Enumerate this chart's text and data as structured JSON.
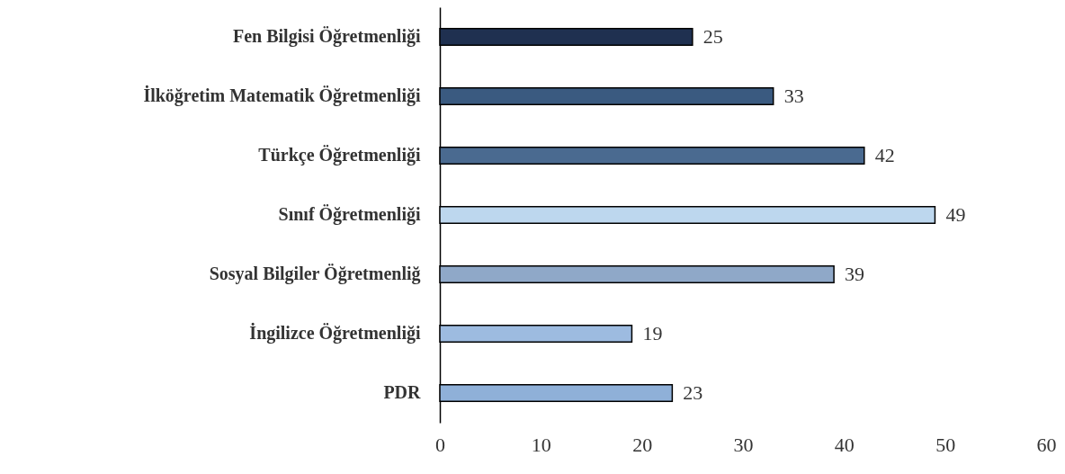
{
  "chart_data": {
    "type": "bar",
    "orientation": "horizontal",
    "categories": [
      "Fen Bilgisi Öğretmenliği",
      "İlköğretim Matematik Öğretmenliği",
      "Türkçe Öğretmenliği",
      "Sınıf Öğretmenliği",
      "Sosyal Bilgiler Öğretmenliğ",
      "İngilizce Öğretmenliği",
      "PDR"
    ],
    "values": [
      25,
      33,
      42,
      49,
      39,
      19,
      23
    ],
    "colors": [
      "#1f3050",
      "#3a5a80",
      "#4a6a90",
      "#bdd7ee",
      "#8fa8c8",
      "#9dbbe0",
      "#8fb0d8"
    ],
    "xlim": [
      0,
      60
    ],
    "xticks": [
      0,
      10,
      20,
      30,
      40,
      50,
      60
    ],
    "grid": false,
    "data_labels": true
  }
}
